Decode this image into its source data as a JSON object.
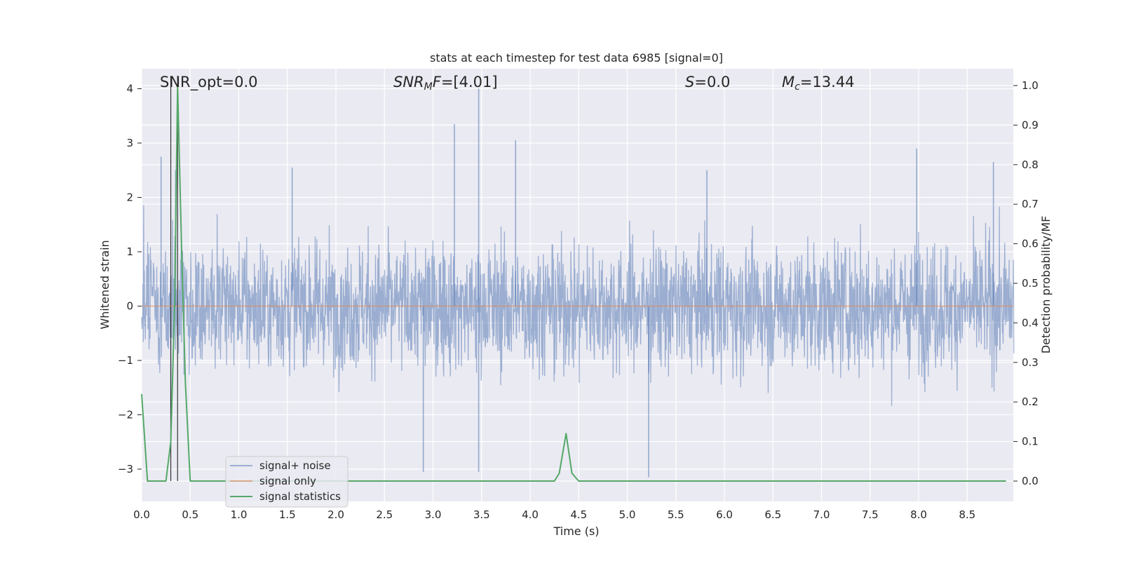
{
  "chart_data": {
    "type": "line",
    "title": "stats at each timestep for test data 6985 [signal=0]",
    "xlabel": "Time (s)",
    "ylabel": "Whitened strain",
    "y2label": "Detection probability/MF",
    "xlim": [
      0.0,
      9.0
    ],
    "ylim": [
      -3.5,
      4.3
    ],
    "y2lim": [
      -0.047,
      1.04
    ],
    "grid": true,
    "legend_position": "lower-left",
    "x_ticks": [
      "0.0",
      "0.5",
      "1.0",
      "1.5",
      "2.0",
      "2.5",
      "3.0",
      "3.5",
      "4.0",
      "4.5",
      "5.0",
      "5.5",
      "6.0",
      "6.5",
      "7.0",
      "7.5",
      "8.0",
      "8.5"
    ],
    "y_ticks": [
      "−3",
      "−2",
      "−1",
      "0",
      "1",
      "2",
      "3",
      "4"
    ],
    "y2_ticks": [
      "0.0",
      "0.1",
      "0.2",
      "0.3",
      "0.4",
      "0.5",
      "0.6",
      "0.7",
      "0.8",
      "0.9",
      "1.0"
    ],
    "annotations": {
      "snr_opt": "SNR_opt=0.0",
      "snr_mf_italic": "SNR",
      "snr_mf_sub": "M",
      "snr_mf_italic2": "F",
      "snr_mf_value": "=[4.01]",
      "s_italic": "S",
      "s_value": "=0.0",
      "mc_italic": "M",
      "mc_sub": "c",
      "mc_value": "=13.44"
    },
    "vertical_lines_x": [
      0.3,
      0.37
    ],
    "series": [
      {
        "name": "signal+ noise",
        "color": "#4c72b0",
        "description_stats": {
          "typical_range": [
            -1.0,
            1.1
          ],
          "max": 4.0,
          "min": -3.2
        },
        "notable_peaks": [
          [
            0.2,
            2.75
          ],
          [
            0.35,
            2.5
          ],
          [
            1.55,
            2.55
          ],
          [
            3.22,
            3.35
          ],
          [
            3.47,
            4.0
          ],
          [
            3.85,
            3.05
          ],
          [
            5.82,
            2.5
          ],
          [
            7.98,
            2.9
          ],
          [
            8.77,
            2.65
          ],
          [
            5.22,
            -3.15
          ],
          [
            3.47,
            -3.05
          ],
          [
            2.9,
            -3.05
          ],
          [
            0.3,
            -2.6
          ]
        ]
      },
      {
        "name": "signal only",
        "color": "#dd8452",
        "values_constant": 0.0
      },
      {
        "name": "signal statistics",
        "color": "#55a868",
        "x": [
          0.0,
          0.06,
          0.13,
          0.25,
          0.3,
          0.34,
          0.37,
          0.41,
          0.45,
          0.5,
          4.0,
          4.25,
          4.3,
          4.37,
          4.43,
          4.5,
          4.6,
          8.3,
          8.9
        ],
        "values": [
          0.22,
          0.0,
          0.0,
          0.0,
          0.1,
          0.45,
          1.0,
          0.6,
          0.25,
          0.0,
          0.0,
          0.0,
          0.02,
          0.12,
          0.02,
          0.0,
          0.0,
          0.0,
          0.0
        ]
      }
    ]
  }
}
